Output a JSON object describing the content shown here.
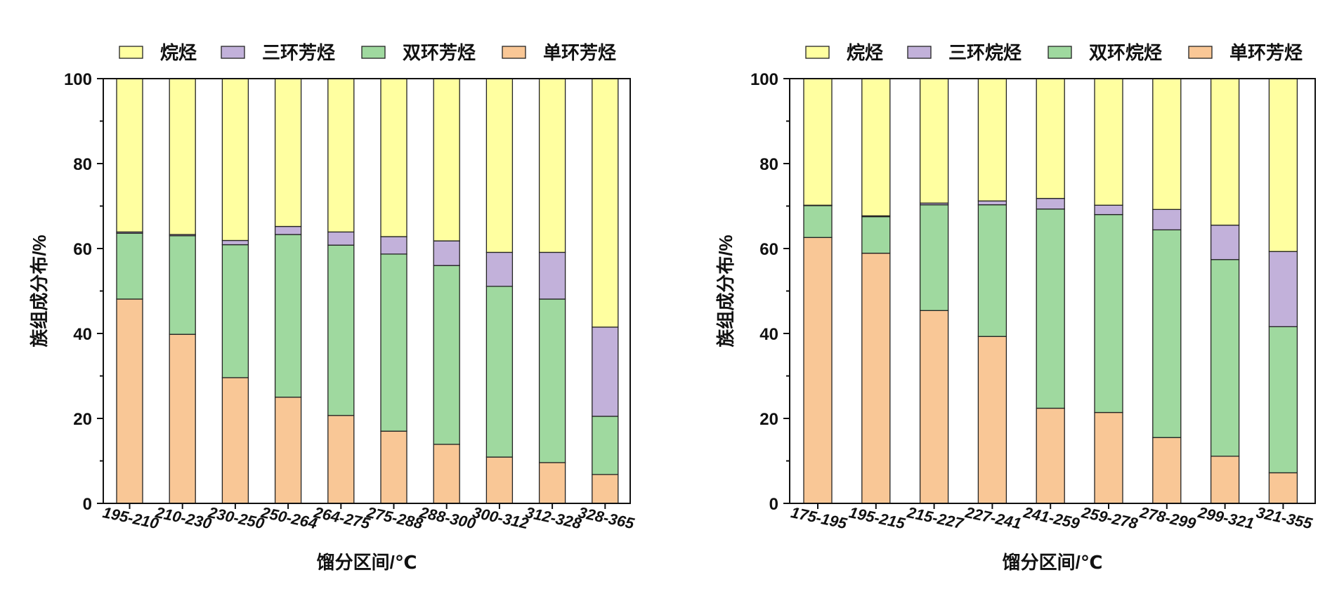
{
  "colors": {
    "alkanes": "#FFFFA0",
    "tricyclic": "#C2B1DA",
    "bicyclic": "#9FD99F",
    "monocyclic": "#F9C796"
  },
  "chart_data": [
    {
      "type": "bar",
      "stacked": true,
      "title": "",
      "xlabel": "馏分区间/℃",
      "ylabel": "族组成分布/%",
      "ylim": [
        0,
        100
      ],
      "yticks": [
        0,
        20,
        40,
        60,
        80,
        100
      ],
      "grid": false,
      "legend_position": "top",
      "categories": [
        "195-210",
        "210-230",
        "230-250",
        "250-264",
        "264-275",
        "275-288",
        "288-300",
        "300-312",
        "312-328",
        "328-365"
      ],
      "series": [
        {
          "name": "单环芳烃",
          "key": "monocyclic",
          "values": [
            48.1,
            39.8,
            29.6,
            25.0,
            20.7,
            17.0,
            13.9,
            10.9,
            9.6,
            6.8
          ]
        },
        {
          "name": "双环芳烃",
          "key": "bicyclic",
          "values": [
            15.5,
            23.2,
            31.3,
            38.3,
            40.1,
            41.7,
            42.1,
            40.2,
            38.5,
            13.7
          ]
        },
        {
          "name": "三环芳烃",
          "key": "tricyclic",
          "values": [
            0.3,
            0.3,
            1.0,
            1.9,
            3.1,
            4.1,
            5.8,
            8.0,
            11.0,
            21.0
          ]
        },
        {
          "name": "烷烃",
          "key": "alkanes",
          "values": [
            36.1,
            36.7,
            38.1,
            34.8,
            36.1,
            37.2,
            38.2,
            40.9,
            40.9,
            58.5
          ]
        }
      ],
      "legend_order": [
        "烷烃",
        "三环芳烃",
        "双环芳烃",
        "单环芳烃"
      ]
    },
    {
      "type": "bar",
      "stacked": true,
      "title": "",
      "xlabel": "馏分区间/℃",
      "ylabel": "族组成分布/%",
      "ylim": [
        0,
        100
      ],
      "yticks": [
        0,
        20,
        40,
        60,
        80,
        100
      ],
      "grid": false,
      "legend_position": "top",
      "categories": [
        "175-195",
        "195-215",
        "215-227",
        "227-241",
        "241-259",
        "259-278",
        "278-299",
        "299-321",
        "321-355"
      ],
      "series": [
        {
          "name": "单环芳烃",
          "key": "monocyclic",
          "values": [
            62.6,
            58.9,
            45.4,
            39.3,
            22.4,
            21.4,
            15.5,
            11.1,
            7.2
          ]
        },
        {
          "name": "双环烷烃",
          "key": "bicyclic",
          "values": [
            7.5,
            8.6,
            24.9,
            31.0,
            46.9,
            46.6,
            48.9,
            46.3,
            34.4
          ]
        },
        {
          "name": "三环烷烃",
          "key": "tricyclic",
          "values": [
            0.1,
            0.2,
            0.4,
            0.9,
            2.5,
            2.2,
            4.8,
            8.1,
            17.7
          ]
        },
        {
          "name": "烷烃",
          "key": "alkanes",
          "values": [
            29.8,
            32.3,
            29.3,
            28.8,
            28.2,
            29.8,
            30.8,
            34.5,
            40.7
          ]
        }
      ],
      "legend_order": [
        "烷烃",
        "三环烷烃",
        "双环烷烃",
        "单环芳烃"
      ]
    }
  ]
}
